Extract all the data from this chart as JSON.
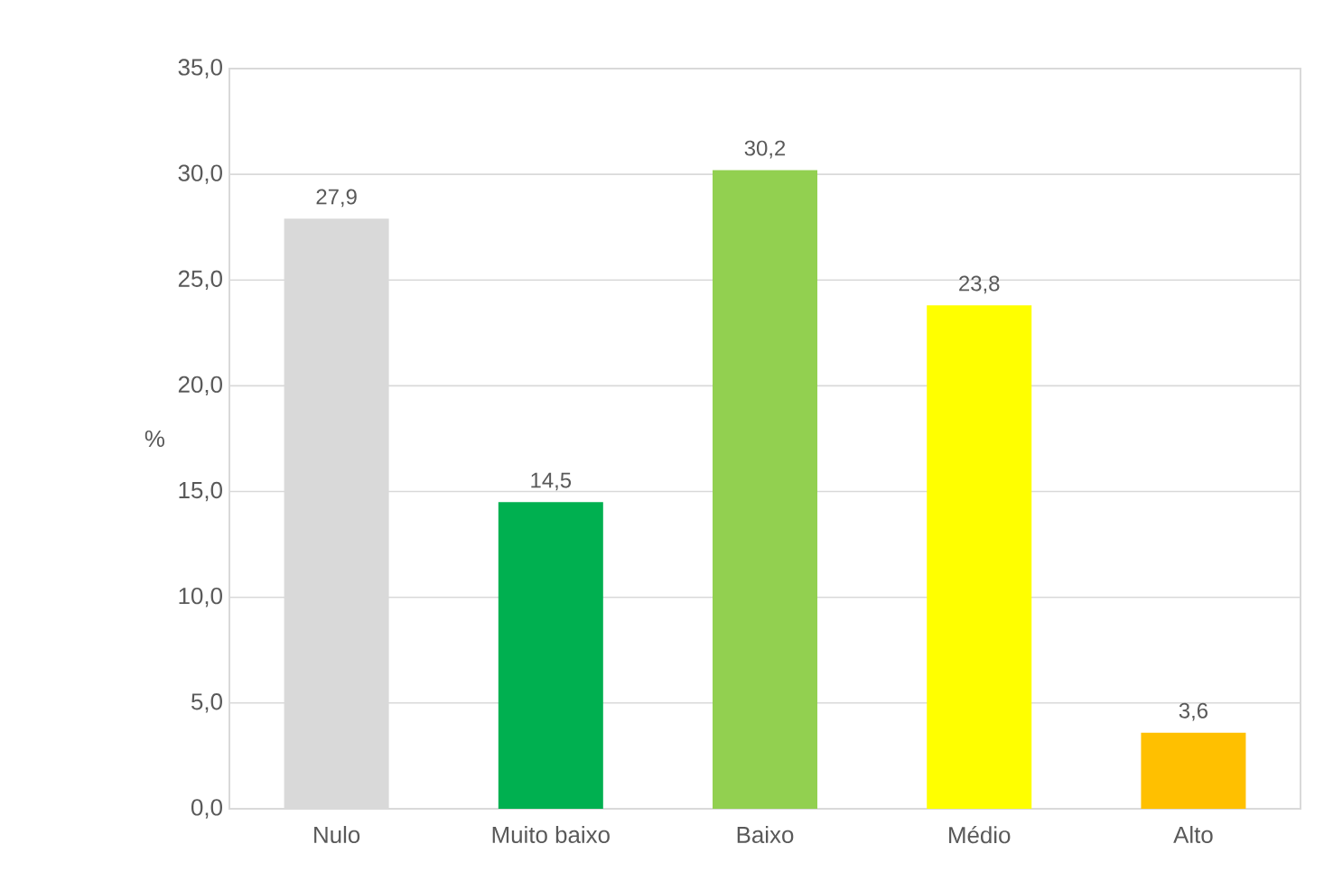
{
  "chart_data": {
    "type": "bar",
    "ylabel": "%",
    "categories": [
      "Nulo",
      "Muito baixo",
      "Baixo",
      "Médio",
      "Alto"
    ],
    "values": [
      27.9,
      14.5,
      30.2,
      23.8,
      3.6
    ],
    "colors": [
      "#d9d9d9",
      "#00b050",
      "#92d050",
      "#ffff00",
      "#ffc000"
    ],
    "value_labels": [
      "27,9",
      "14,5",
      "30,2",
      "23,8",
      "3,6"
    ],
    "ylim": [
      0,
      35
    ],
    "yticks": [
      {
        "value": 0,
        "label": "0,0"
      },
      {
        "value": 5,
        "label": "5,0"
      },
      {
        "value": 10,
        "label": "10,0"
      },
      {
        "value": 15,
        "label": "15,0"
      },
      {
        "value": 20,
        "label": "20,0"
      },
      {
        "value": 25,
        "label": "25,0"
      },
      {
        "value": 30,
        "label": "30,0"
      },
      {
        "value": 35,
        "label": "35,0"
      }
    ],
    "grid": "y"
  }
}
